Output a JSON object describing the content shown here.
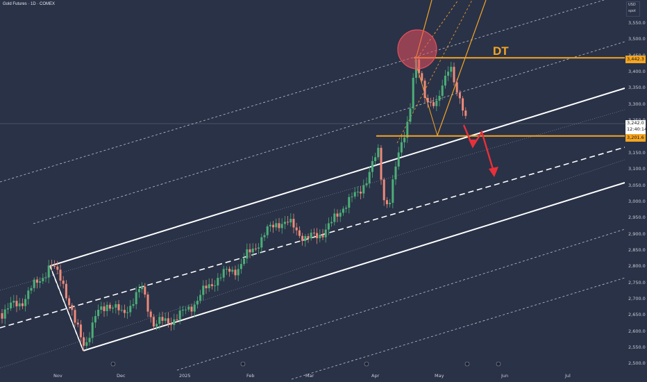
{
  "symbol": {
    "title": "Gold Futures · 1D · COMEX"
  },
  "axis_box": {
    "currency": "USD",
    "mode": "spot"
  },
  "annotation": {
    "pattern_label": "DT"
  },
  "colors": {
    "background": "#2a3247",
    "bull": "#4caf78",
    "bear": "#ee8a7a",
    "channel": "#ffffff",
    "level": "#f5a623",
    "forecast": "#e8303a",
    "circle": "#e8505c"
  },
  "price_badges": {
    "top": "3,442.3",
    "current_price": "3,242.0",
    "current_time": "12:40:14",
    "support": "3,201.6"
  },
  "y_ticks": [
    "3,550.0",
    "3,500.0",
    "3,450.0",
    "3,400.0",
    "3,350.0",
    "3,300.0",
    "3,250.0",
    "3,200.0",
    "3,150.0",
    "3,100.0",
    "3,050.0",
    "3,000.0",
    "2,950.0",
    "2,900.0",
    "2,850.0",
    "2,800.0",
    "2,750.0",
    "2,700.0",
    "2,650.0",
    "2,600.0",
    "2,550.0",
    "2,500.0"
  ],
  "x_ticks": [
    "Nov",
    "Dec",
    "2025",
    "Feb",
    "Mar",
    "Apr",
    "May",
    "Jun",
    "Jul"
  ],
  "chart_data": {
    "type": "candlestick",
    "instrument": "Gold Futures",
    "interval": "1D",
    "exchange": "COMEX",
    "ylim": [
      2490,
      3580
    ],
    "levels": [
      {
        "label": "DT",
        "price": 3442.3
      },
      {
        "price": 3201.6
      }
    ],
    "segments": [
      {
        "start": "Oct",
        "price": 2650
      },
      {
        "start": "late Oct",
        "price": 2800
      },
      {
        "start": "mid Nov",
        "price": 2555
      },
      {
        "start": "Dec",
        "price": 2700
      },
      {
        "start": "early Jan",
        "price": 2620
      },
      {
        "start": "Feb",
        "price": 2900
      },
      {
        "start": "Mar",
        "price": 2900
      },
      {
        "start": "early Apr",
        "price": 3150
      },
      {
        "start": "Apr",
        "price": 2980
      },
      {
        "start": "late Apr",
        "price": 3442
      },
      {
        "start": "May",
        "price": 3250
      }
    ]
  }
}
